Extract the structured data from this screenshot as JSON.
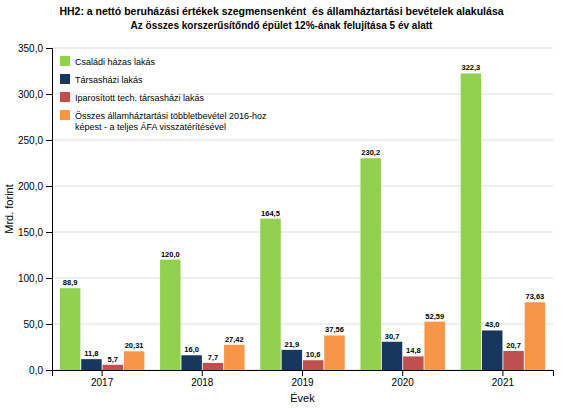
{
  "chart_data": {
    "type": "bar",
    "title": "HH2: a nettó beruházási értékek szegmensenként  és államháztartási bevételek alakulása",
    "subtitle": "Az összes korszerűsítőndő épület 12%-ának felujítása 5 év alatt",
    "categories": [
      "2017",
      "2018",
      "2019",
      "2020",
      "2021"
    ],
    "series": [
      {
        "name": "Családi házas lakás",
        "color": "#92d050",
        "values": [
          88.9,
          120.0,
          164.5,
          230.2,
          322.3
        ],
        "value_labels": [
          "88,9",
          "120,0",
          "164,5",
          "230,2",
          "322,3"
        ]
      },
      {
        "name": "Társasházi lakás",
        "color": "#17375e",
        "values": [
          11.8,
          16.0,
          21.9,
          30.7,
          43.0
        ],
        "value_labels": [
          "11,8",
          "16,0",
          "21,9",
          "30,7",
          "43,0"
        ]
      },
      {
        "name": "Iparosított tech. társasházi lakás",
        "color": "#c0504d",
        "values": [
          5.7,
          7.7,
          10.6,
          14.8,
          20.7
        ],
        "value_labels": [
          "5,7",
          "7,7",
          "10,6",
          "14,8",
          "20,7"
        ]
      },
      {
        "name": "Összes államháztartási többletbevétel 2016-hoz\nképest - a teljes ÁFA visszatérítésével",
        "color": "#f79646",
        "values": [
          20.31,
          27.42,
          37.56,
          52.59,
          73.63
        ],
        "value_labels": [
          "20,31",
          "27,42",
          "37,56",
          "52,59",
          "73,63"
        ]
      }
    ],
    "xlabel": "Évek",
    "ylabel": "Mrd. forint",
    "ylim": [
      0,
      350
    ],
    "yticks": [
      {
        "value": 0.0,
        "label": "0,0"
      },
      {
        "value": 50.0,
        "label": "50,0"
      },
      {
        "value": 100.0,
        "label": "100,0"
      },
      {
        "value": 150.0,
        "label": "150,0"
      },
      {
        "value": 200.0,
        "label": "200,0"
      },
      {
        "value": 250.0,
        "label": "250,0"
      },
      {
        "value": 300.0,
        "label": "300,0"
      },
      {
        "value": 350.0,
        "label": "350,0"
      }
    ],
    "grid": true,
    "legend": "upper left",
    "data_labels": true
  }
}
